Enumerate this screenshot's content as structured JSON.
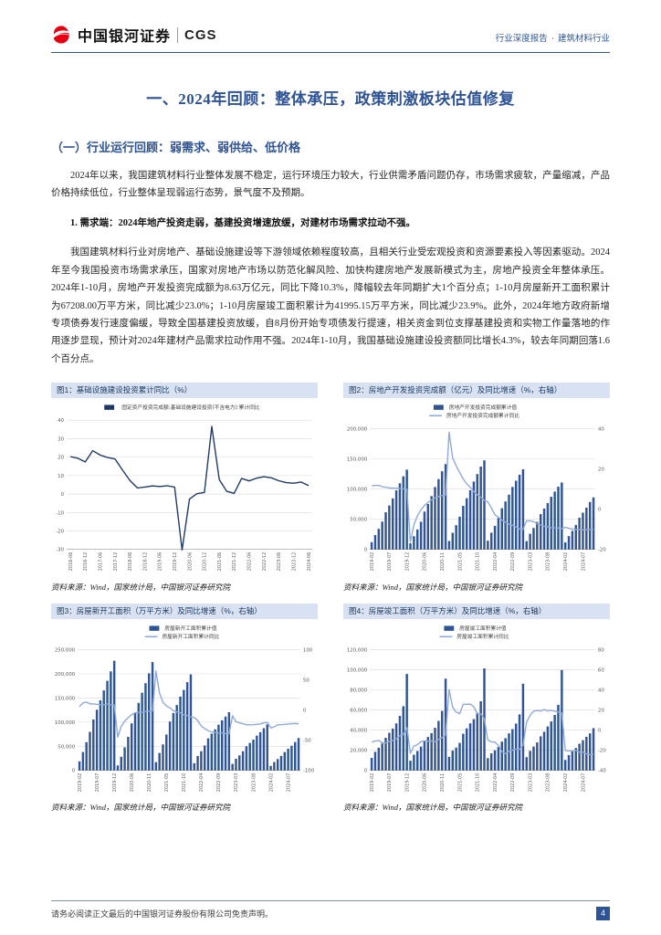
{
  "colors": {
    "accent_blue": "#2F5496",
    "navy": "#1F3864",
    "bar_blue": "#2F5597",
    "line_light_blue": "#8EA9DB",
    "fig_title_bg": "#D9E2F3",
    "logo_red": "#E60012"
  },
  "header": {
    "brand_cn": "中国银河证券",
    "brand_en": "CGS",
    "doc_type": "行业深度报告",
    "dot": "·",
    "industry": "建筑材料行业"
  },
  "title": "一、2024年回顾：整体承压，政策刺激板块估值修复",
  "section": {
    "heading": "（一）行业运行回顾：弱需求、弱供给、低价格",
    "para1": "2024年以来，我国建筑材料行业整体发展不稳定，运行环境压力较大，行业供需矛盾问题仍存，市场需求疲软，产量缩减，产品价格持续低位，行业整体呈现弱运行态势，景气度不及预期。",
    "subpoint": "1. 需求端：2024年地产投资走弱，基建投资增速放缓，对建材市场需求拉动不强。",
    "para2": "我国建筑材料行业对房地产、基础设施建设等下游领域依赖程度较高，且相关行业受宏观投资和资源要素投入等因素驱动。2024年至今我国投资市场需求承压，国家对房地产市场以防范化解风险、加快构建房地产发展新模式为主，房地产投资全年整体承压。2024年1-10月，房地产开发投资完成额为8.63万亿元，同比下降10.3%，降幅较去年同期扩大1个百分点；1-10月房屋新开工面积累计为67208.00万平方米，同比减少23.0%；1-10月房屋竣工面积累计为41995.15万平方米，同比减少23.9%。此外，2024年地方政府新增专项债券发行速度偏缓，导致全国基建投资放缓，自8月份开始专项债发行提速，相关资金到位支撑基建投资和实物工作量落地的作用逐步显现，预计对2024年建材产品需求拉动作用不强。2024年1-10月，我国基础设施建设投资额同比增长4.3%，较去年同期回落1.6个百分点。"
  },
  "footer": {
    "disclaimer": "请务必阅读正文最后的中国银河证券股份有限公司免责声明。",
    "page": "4"
  },
  "chart_data": [
    {
      "fig": "图1：基础设施建设投资累计同比（%）",
      "type": "line",
      "source": "资料来源：Wind，国家统计局，中国银河证券研究院",
      "left_axis": {
        "min": -30,
        "max": 40,
        "step": 10
      },
      "x_label_every": 2,
      "x": [
        "2016-06",
        "2016-09",
        "2016-12",
        "2017-03",
        "2017-06",
        "2017-09",
        "2017-12",
        "2018-03",
        "2018-06",
        "2018-09",
        "2018-12",
        "2019-03",
        "2019-06",
        "2019-09",
        "2019-12",
        "2020-02",
        "2020-06",
        "2020-09",
        "2020-12",
        "2021-02",
        "2021-06",
        "2021-09",
        "2021-12",
        "2022-03",
        "2022-06",
        "2022-09",
        "2022-12",
        "2023-03",
        "2023-06",
        "2023-09",
        "2023-12",
        "2024-03",
        "2024-06"
      ],
      "series": [
        {
          "name": "固定资产投资完成额:基础设施建设投资(不含电力):累计同比",
          "kind": "line",
          "axis": "left",
          "color": "#1F3864",
          "legend_swatch": "box",
          "values": [
            20.3,
            19.4,
            17.4,
            23.5,
            21.1,
            19.8,
            19.0,
            13.0,
            7.3,
            3.3,
            3.8,
            4.4,
            4.1,
            4.5,
            3.8,
            -30.3,
            -2.7,
            0.2,
            0.9,
            36.6,
            7.8,
            1.5,
            0.4,
            8.5,
            7.1,
            8.6,
            9.4,
            8.8,
            7.2,
            6.2,
            5.9,
            6.5,
            4.6
          ]
        }
      ]
    },
    {
      "fig": "图2：房地产开发投资完成额（亿元）及同比增速（%，右轴）",
      "type": "bar-line",
      "source": "资料来源：Wind，国家统计局，中国银河证券研究院",
      "left_axis": {
        "min": 0,
        "max": 200000,
        "step": 50000
      },
      "right_axis": {
        "min": -20,
        "max": 40,
        "step": 20
      },
      "x_label_every": 5,
      "x": [
        "2019-02",
        "2019-03",
        "2019-04",
        "2019-05",
        "2019-06",
        "2019-07",
        "2019-08",
        "2019-09",
        "2019-10",
        "2019-11",
        "2019-12",
        "2020-02",
        "2020-03",
        "2020-04",
        "2020-05",
        "2020-06",
        "2020-07",
        "2020-08",
        "2020-09",
        "2020-10",
        "2020-11",
        "2020-12",
        "2021-02",
        "2021-03",
        "2021-04",
        "2021-05",
        "2021-06",
        "2021-07",
        "2021-08",
        "2021-09",
        "2021-10",
        "2021-11",
        "2021-12",
        "2022-02",
        "2022-03",
        "2022-04",
        "2022-05",
        "2022-06",
        "2022-07",
        "2022-08",
        "2022-09",
        "2022-10",
        "2022-11",
        "2022-12",
        "2023-02",
        "2023-03",
        "2023-04",
        "2023-05",
        "2023-06",
        "2023-07",
        "2023-08",
        "2023-09",
        "2023-10",
        "2023-11",
        "2023-12",
        "2024-02",
        "2024-03",
        "2024-04",
        "2024-05",
        "2024-06",
        "2024-07",
        "2024-08",
        "2024-09",
        "2024-10"
      ],
      "series": [
        {
          "name": "房地产开发投资完成额累计值",
          "kind": "bar",
          "axis": "left",
          "color": "#2F5597",
          "values": [
            12090,
            23803,
            34217,
            46075,
            61609,
            72843,
            84589,
            98008,
            109603,
            121265,
            132194,
            10115,
            21963,
            33103,
            45920,
            62780,
            75325,
            88454,
            103484,
            116556,
            129492,
            141443,
            13986,
            27576,
            40240,
            54318,
            72179,
            84895,
            98060,
            112568,
            124934,
            137314,
            147602,
            14499,
            27765,
            39154,
            52134,
            68314,
            79462,
            90809,
            103559,
            113945,
            123863,
            132895,
            13669,
            25974,
            35514,
            45701,
            58550,
            67717,
            76900,
            87269,
            95922,
            104045,
            110913,
            11842,
            22082,
            30929,
            40632,
            52529,
            60877,
            69284,
            78680,
            86309
          ]
        },
        {
          "name": "房地产开发投资完成额累计同比",
          "kind": "line",
          "axis": "right",
          "color": "#8EA9DB",
          "values": [
            11.6,
            11.8,
            11.9,
            11.2,
            10.9,
            10.6,
            10.5,
            10.5,
            10.3,
            10.2,
            9.9,
            -16.3,
            -7.7,
            -3.3,
            -0.3,
            1.9,
            3.4,
            4.6,
            5.6,
            6.3,
            6.8,
            7.0,
            38.3,
            25.6,
            21.6,
            18.3,
            15.0,
            12.7,
            10.9,
            8.8,
            7.2,
            6.0,
            4.4,
            3.7,
            0.7,
            -2.7,
            -4.0,
            -5.4,
            -6.4,
            -7.4,
            -8.0,
            -8.8,
            -9.8,
            -10.0,
            -5.7,
            -5.8,
            -6.2,
            -7.2,
            -7.9,
            -8.5,
            -8.8,
            -9.1,
            -9.3,
            -9.4,
            -9.6,
            -9.0,
            -9.5,
            -9.8,
            -10.1,
            -10.1,
            -10.2,
            -10.2,
            -10.1,
            -10.3
          ]
        }
      ]
    },
    {
      "fig": "图3：房屋新开工面积（万平方米）及同比增速（%，右轴）",
      "type": "bar-line",
      "source": "资料来源：Wind，国家统计局，中国银河证券研究院",
      "left_axis": {
        "min": 0,
        "max": 250000,
        "step": 50000
      },
      "right_axis": {
        "min": -100,
        "max": 100,
        "step": 50
      },
      "x_label_every": 5,
      "x": [
        "2019-02",
        "2019-03",
        "2019-04",
        "2019-05",
        "2019-06",
        "2019-07",
        "2019-08",
        "2019-09",
        "2019-10",
        "2019-11",
        "2019-12",
        "2020-02",
        "2020-03",
        "2020-04",
        "2020-05",
        "2020-06",
        "2020-07",
        "2020-08",
        "2020-09",
        "2020-10",
        "2020-11",
        "2020-12",
        "2021-02",
        "2021-03",
        "2021-04",
        "2021-05",
        "2021-06",
        "2021-07",
        "2021-08",
        "2021-09",
        "2021-10",
        "2021-11",
        "2021-12",
        "2022-02",
        "2022-03",
        "2022-04",
        "2022-05",
        "2022-06",
        "2022-07",
        "2022-08",
        "2022-09",
        "2022-10",
        "2022-11",
        "2022-12",
        "2023-02",
        "2023-03",
        "2023-04",
        "2023-05",
        "2023-06",
        "2023-07",
        "2023-08",
        "2023-09",
        "2023-10",
        "2023-11",
        "2023-12",
        "2024-02",
        "2024-03",
        "2024-04",
        "2024-05",
        "2024-06",
        "2024-07",
        "2024-08",
        "2024-09",
        "2024-10"
      ],
      "series": [
        {
          "name": "房屋新开工面积累计值",
          "kind": "bar",
          "axis": "left",
          "color": "#2F5597",
          "values": [
            18814,
            38110,
            58552,
            79784,
            105509,
            125716,
            145133,
            165696,
            185634,
            205194,
            227154,
            10370,
            28203,
            47768,
            69533,
            97536,
            120032,
            139917,
            160896,
            180718,
            201115,
            224433,
            17037,
            36163,
            53905,
            74349,
            101288,
            118948,
            135502,
            152944,
            166736,
            182820,
            198895,
            14967,
            29838,
            39739,
            51628,
            66423,
            76067,
            85062,
            94767,
            103722,
            111632,
            120587,
            13567,
            24121,
            31220,
            39723,
            49880,
            56969,
            63891,
            72123,
            79177,
            87456,
            95376,
            9429,
            17283,
            23510,
            30090,
            38023,
            44991,
            51177,
            58766,
            67208
          ]
        },
        {
          "name": "房屋新开工面积累计同比",
          "kind": "line",
          "axis": "right",
          "color": "#8EA9DB",
          "values": [
            6.0,
            11.9,
            13.1,
            10.5,
            10.1,
            9.5,
            8.9,
            8.6,
            10.0,
            8.6,
            8.5,
            -44.9,
            -27.2,
            -18.4,
            -12.8,
            -7.6,
            -4.5,
            -3.6,
            -3.4,
            -2.6,
            -2.0,
            -1.2,
            64.3,
            28.2,
            12.8,
            6.9,
            3.8,
            -0.9,
            -3.2,
            -4.5,
            -7.7,
            -9.1,
            -11.4,
            -12.2,
            -17.5,
            -26.3,
            -30.6,
            -34.4,
            -36.1,
            -37.2,
            -38.0,
            -37.8,
            -38.9,
            -39.4,
            -9.4,
            -19.2,
            -21.2,
            -22.6,
            -24.3,
            -24.5,
            -24.4,
            -23.4,
            -23.2,
            -21.2,
            -20.4,
            -29.7,
            -27.8,
            -24.6,
            -24.2,
            -23.7,
            -23.2,
            -22.5,
            -22.2,
            -23.0
          ]
        }
      ]
    },
    {
      "fig": "图4：房屋竣工面积（万平方米）及同比增速（%，右轴）",
      "type": "bar-line",
      "source": "资料来源：Wind，国家统计局，中国银河证券研究院",
      "left_axis": {
        "min": 0,
        "max": 120000,
        "step": 20000
      },
      "right_axis": {
        "min": -40,
        "max": 80,
        "step": 20
      },
      "x_label_every": 5,
      "x": [
        "2019-02",
        "2019-03",
        "2019-04",
        "2019-05",
        "2019-06",
        "2019-07",
        "2019-08",
        "2019-09",
        "2019-10",
        "2019-11",
        "2019-12",
        "2020-02",
        "2020-03",
        "2020-04",
        "2020-05",
        "2020-06",
        "2020-07",
        "2020-08",
        "2020-09",
        "2020-10",
        "2020-11",
        "2020-12",
        "2021-02",
        "2021-03",
        "2021-04",
        "2021-05",
        "2021-06",
        "2021-07",
        "2021-08",
        "2021-09",
        "2021-10",
        "2021-11",
        "2021-12",
        "2022-02",
        "2022-03",
        "2022-04",
        "2022-05",
        "2022-06",
        "2022-07",
        "2022-08",
        "2022-09",
        "2022-10",
        "2022-11",
        "2022-12",
        "2023-02",
        "2023-03",
        "2023-04",
        "2023-05",
        "2023-06",
        "2023-07",
        "2023-08",
        "2023-09",
        "2023-10",
        "2023-11",
        "2023-12",
        "2024-02",
        "2024-03",
        "2024-04",
        "2024-05",
        "2024-06",
        "2024-07",
        "2024-08",
        "2024-09",
        "2024-10"
      ],
      "series": [
        {
          "name": "房屋竣工面积累计值",
          "kind": "bar",
          "axis": "left",
          "color": "#2F5597",
          "values": [
            12500,
            18474,
            22564,
            26707,
            32426,
            37331,
            41610,
            46748,
            54211,
            63846,
            95942,
            9636,
            15557,
            19286,
            23687,
            29030,
            33248,
            37107,
            42375,
            49240,
            59173,
            91218,
            13525,
            19657,
            22736,
            27365,
            36481,
            41782,
            46761,
            51013,
            57290,
            68754,
            101412,
            12200,
            16929,
            20030,
            23362,
            28636,
            32028,
            36861,
            41089,
            46565,
            55709,
            86222,
            13178,
            19422,
            23678,
            27826,
            33904,
            38405,
            43726,
            48705,
            55151,
            65237,
            99831,
            10395,
            15259,
            18860,
            22245,
            26519,
            30017,
            33394,
            36816,
            41995
          ]
        },
        {
          "name": "房屋竣工面积累计同比",
          "kind": "line",
          "axis": "right",
          "color": "#8EA9DB",
          "values": [
            -11.9,
            -10.8,
            -10.3,
            -12.4,
            -12.7,
            -11.3,
            -10.0,
            -8.6,
            -5.5,
            -4.5,
            2.6,
            -22.9,
            -15.8,
            -14.5,
            -11.3,
            -10.5,
            -10.9,
            -10.8,
            -11.6,
            -9.2,
            -7.3,
            -4.9,
            40.4,
            22.9,
            17.9,
            16.4,
            25.7,
            25.7,
            26.0,
            23.4,
            16.3,
            16.2,
            11.2,
            -9.8,
            -11.5,
            -11.9,
            -15.3,
            -21.5,
            -23.3,
            -21.1,
            -19.9,
            -18.7,
            -19.0,
            -15.0,
            8.0,
            14.7,
            18.8,
            19.6,
            19.0,
            20.5,
            19.2,
            19.8,
            18.8,
            17.9,
            17.0,
            -20.2,
            -20.7,
            -20.4,
            -20.1,
            -21.8,
            -21.8,
            -23.6,
            -24.4,
            -23.9
          ]
        }
      ]
    }
  ]
}
